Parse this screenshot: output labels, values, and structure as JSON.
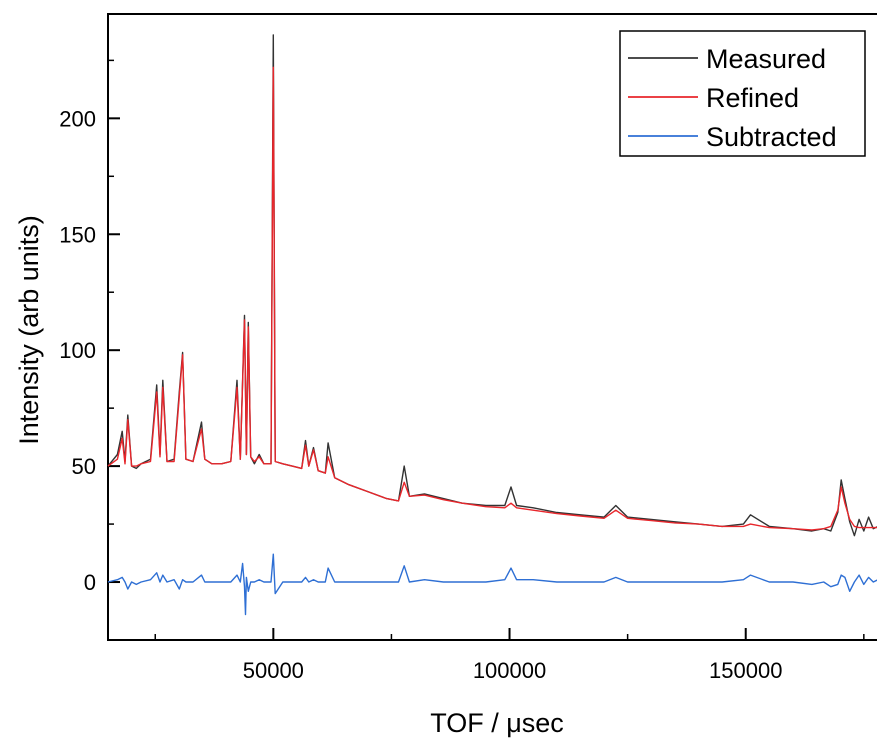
{
  "chart_data": {
    "type": "line",
    "title": "",
    "xlabel": "TOF / μsec",
    "ylabel": "Intensity (arb units)",
    "xlim": [
      15000,
      178000
    ],
    "ylim": [
      -25,
      245
    ],
    "x_ticks": [
      50000,
      100000,
      150000
    ],
    "x_tick_labels": [
      "50000",
      "100000",
      "150000"
    ],
    "y_ticks": [
      0,
      50,
      100,
      150,
      200
    ],
    "y_tick_labels": [
      "0",
      "50",
      "100",
      "150",
      "200"
    ],
    "grid": false,
    "legend_position": "top-right",
    "series": [
      {
        "name": "Measured",
        "color": "#333333",
        "x": [
          15000,
          17000,
          18000,
          18600,
          19200,
          20000,
          21000,
          22000,
          24000,
          25300,
          26000,
          26600,
          27500,
          29000,
          30100,
          30800,
          31500,
          33000,
          34800,
          35500,
          37000,
          39000,
          41000,
          42300,
          43000,
          43900,
          44300,
          44700,
          45200,
          46000,
          47000,
          48000,
          49500,
          50000,
          50400,
          52000,
          54000,
          56000,
          56800,
          57500,
          58500,
          59500,
          61000,
          61600,
          63000,
          66000,
          70000,
          74000,
          76500,
          77700,
          78800,
          82000,
          86000,
          90000,
          95000,
          99000,
          100300,
          101500,
          105000,
          110000,
          115000,
          120000,
          122500,
          125000,
          130000,
          135000,
          140000,
          145000,
          149500,
          151000,
          155000,
          160000,
          164000,
          166500,
          168000,
          169500,
          170200,
          171000,
          172000,
          173000,
          174000,
          175000,
          176000,
          177000,
          178000
        ],
        "y": [
          50,
          55,
          65,
          52,
          72,
          50,
          49,
          51,
          53,
          85,
          55,
          87,
          52,
          53,
          82,
          99,
          53,
          52,
          69,
          53,
          51,
          51,
          52,
          87,
          53,
          115,
          55,
          112,
          54,
          51,
          55,
          51,
          51,
          236,
          52,
          51,
          50,
          49,
          61,
          50,
          58,
          48,
          47,
          60,
          45,
          42,
          39,
          36,
          35,
          50,
          37,
          38,
          36,
          34,
          33,
          33,
          41,
          33,
          32,
          30,
          29,
          28,
          33,
          28,
          27,
          26,
          25,
          24,
          25,
          29,
          24,
          23,
          22,
          23,
          22,
          30,
          44,
          36,
          26,
          20,
          27,
          22,
          28,
          23,
          24
        ]
      },
      {
        "name": "Refined",
        "color": "#e8262b",
        "x": [
          15000,
          17000,
          18000,
          18600,
          19200,
          20000,
          21000,
          22000,
          24000,
          25300,
          26000,
          26600,
          27500,
          29000,
          30100,
          30800,
          31500,
          33000,
          34800,
          35500,
          37000,
          39000,
          41000,
          42300,
          43000,
          43900,
          44300,
          44700,
          45200,
          46000,
          47000,
          48000,
          49500,
          50000,
          50400,
          52000,
          54000,
          56000,
          56800,
          57500,
          58500,
          59500,
          61000,
          61600,
          63000,
          66000,
          70000,
          74000,
          76500,
          77700,
          78800,
          82000,
          86000,
          90000,
          95000,
          99000,
          100300,
          101500,
          105000,
          110000,
          115000,
          120000,
          122500,
          125000,
          130000,
          135000,
          140000,
          145000,
          149500,
          151000,
          155000,
          160000,
          164000,
          166500,
          168000,
          169500,
          170200,
          171000,
          172000,
          173000,
          174000,
          175000,
          176000,
          177000,
          178000
        ],
        "y": [
          50,
          53,
          62,
          51,
          70,
          50,
          50,
          51,
          52,
          82,
          54,
          84,
          52,
          52,
          80,
          98,
          53,
          52,
          66,
          53,
          51,
          51,
          52,
          84,
          53,
          113,
          55,
          110,
          54,
          52,
          54,
          51,
          51,
          222,
          52,
          51,
          50,
          49,
          59,
          50,
          57,
          48,
          47,
          54,
          45,
          42,
          39,
          36,
          35,
          43,
          37,
          37.5,
          35.5,
          34,
          32.5,
          32,
          34,
          32,
          31,
          29.5,
          28.5,
          27.5,
          31,
          27.5,
          26.5,
          25.5,
          25,
          24,
          24,
          25,
          23.5,
          23,
          22.5,
          23,
          24,
          31,
          41,
          34,
          27,
          24,
          23.5,
          23.5,
          23.5,
          23.5,
          23.5
        ]
      },
      {
        "name": "Subtracted",
        "color": "#2e6fd4",
        "x": [
          15000,
          17000,
          18000,
          18600,
          19200,
          20000,
          21000,
          22000,
          24000,
          25300,
          26000,
          26600,
          27500,
          29000,
          30100,
          30800,
          31500,
          33000,
          34800,
          35500,
          37000,
          39000,
          41000,
          42300,
          43000,
          43500,
          43900,
          44100,
          44300,
          44700,
          45200,
          46000,
          47000,
          48000,
          49500,
          50000,
          50400,
          52000,
          54000,
          56000,
          56800,
          57500,
          58500,
          59500,
          61000,
          61600,
          63000,
          66000,
          70000,
          74000,
          76500,
          77700,
          78800,
          82000,
          86000,
          90000,
          95000,
          99000,
          100300,
          101500,
          105000,
          110000,
          115000,
          120000,
          122500,
          125000,
          130000,
          135000,
          140000,
          145000,
          149500,
          151000,
          155000,
          160000,
          164000,
          166500,
          168000,
          169500,
          170200,
          171000,
          172000,
          173000,
          174000,
          175000,
          176000,
          177000,
          178000
        ],
        "y": [
          0,
          1,
          2,
          0,
          -3,
          0,
          -1,
          0,
          1,
          4,
          0,
          3,
          0,
          1,
          -3,
          1,
          0,
          0,
          3,
          0,
          0,
          0,
          0,
          3,
          0,
          8,
          -2,
          -14,
          2,
          -4,
          0,
          0,
          1,
          0,
          0,
          12,
          -5,
          0,
          0,
          0,
          2,
          0,
          1,
          0,
          0,
          6,
          0,
          0,
          0,
          0,
          0,
          7,
          0,
          1,
          0,
          0,
          0,
          1,
          6,
          1,
          1,
          0,
          0,
          0,
          2,
          0,
          0,
          0,
          0,
          0,
          1,
          3,
          0,
          0,
          -1,
          0,
          -2,
          -1,
          3,
          2,
          -4,
          0,
          3,
          -1,
          2,
          0,
          1
        ]
      }
    ]
  }
}
